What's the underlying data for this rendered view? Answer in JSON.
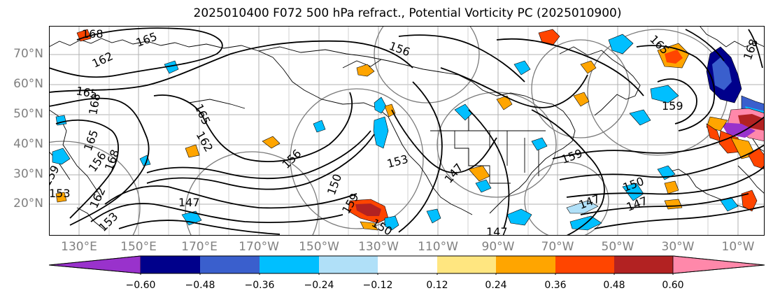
{
  "title": "2025010400 F072 500 hPa refract., Potential Vorticity PC (2025010900)",
  "map": {
    "lat_labels": [
      "70°N",
      "60°N",
      "50°N",
      "40°N",
      "30°N",
      "20°N"
    ],
    "lon_labels": [
      "130°E",
      "150°E",
      "170°E",
      "170°W",
      "150°W",
      "130°W",
      "110°W",
      "90°W",
      "70°W",
      "50°W",
      "30°W",
      "10°W"
    ],
    "contour_labels": [
      "168",
      "165",
      "162",
      "165",
      "165",
      "168",
      "165",
      "168",
      "162",
      "159",
      "156",
      "162",
      "153",
      "153",
      "147",
      "156",
      "159",
      "150",
      "153",
      "150",
      "147",
      "147",
      "159",
      "165",
      "168",
      "159",
      "156",
      "150",
      "147",
      "147"
    ]
  },
  "colorbar": {
    "tick_labels": [
      "−0.60",
      "−0.48",
      "−0.36",
      "−0.24",
      "−0.12",
      "0.12",
      "0.24",
      "0.36",
      "0.48",
      "0.60"
    ],
    "colors": [
      "#9932cc",
      "#00008b",
      "#3a5fcd",
      "#00bfff",
      "#b0e0f8",
      "#ffffff",
      "#ffe680",
      "#ffa500",
      "#ff4500",
      "#b22222",
      "#ff88aa"
    ]
  }
}
